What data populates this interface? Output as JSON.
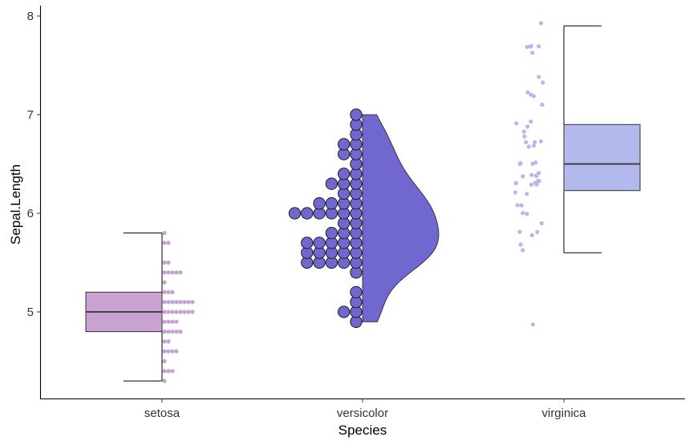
{
  "chart_data": {
    "type": "box-dot-violin",
    "title": "",
    "xlabel": "Species",
    "ylabel": "Sepal.Length",
    "categories": [
      "setosa",
      "versicolor",
      "virginica"
    ],
    "ylim": [
      4.2,
      8.1
    ],
    "yticks": [
      5,
      6,
      7,
      8
    ],
    "grid": false,
    "legend": "none",
    "series": [
      {
        "category": "setosa",
        "geoms": [
          "boxplot",
          "dotplot"
        ],
        "color": "#c8a2d1",
        "box": {
          "min": 4.3,
          "q1": 4.8,
          "median": 5.0,
          "q3": 5.2,
          "max": 5.8
        },
        "values": [
          4.3,
          4.4,
          4.4,
          4.4,
          4.5,
          4.6,
          4.6,
          4.6,
          4.6,
          4.7,
          4.7,
          4.8,
          4.8,
          4.8,
          4.8,
          4.8,
          4.9,
          4.9,
          4.9,
          4.9,
          5.0,
          5.0,
          5.0,
          5.0,
          5.0,
          5.0,
          5.0,
          5.0,
          5.1,
          5.1,
          5.1,
          5.1,
          5.1,
          5.1,
          5.1,
          5.1,
          5.2,
          5.2,
          5.2,
          5.3,
          5.4,
          5.4,
          5.4,
          5.4,
          5.4,
          5.5,
          5.5,
          5.7,
          5.7,
          5.8
        ]
      },
      {
        "category": "versicolor",
        "geoms": [
          "half-violin",
          "dotplot"
        ],
        "color": "#7067cf",
        "values": [
          4.9,
          5.0,
          5.0,
          5.1,
          5.2,
          5.4,
          5.5,
          5.5,
          5.5,
          5.5,
          5.5,
          5.6,
          5.6,
          5.6,
          5.6,
          5.6,
          5.7,
          5.7,
          5.7,
          5.7,
          5.7,
          5.8,
          5.8,
          5.8,
          5.9,
          5.9,
          6.0,
          6.0,
          6.0,
          6.0,
          6.0,
          6.0,
          6.1,
          6.1,
          6.1,
          6.1,
          6.2,
          6.2,
          6.3,
          6.3,
          6.3,
          6.4,
          6.4,
          6.5,
          6.6,
          6.6,
          6.7,
          6.7,
          6.8,
          6.9,
          7.0
        ]
      },
      {
        "category": "virginica",
        "geoms": [
          "jitter",
          "boxplot"
        ],
        "color": "#b3b9ec",
        "box": {
          "min": 5.6,
          "q1": 6.23,
          "median": 6.5,
          "q3": 6.9,
          "max": 7.9
        },
        "values": [
          4.9,
          5.6,
          5.7,
          5.8,
          5.8,
          5.8,
          5.9,
          6.0,
          6.0,
          6.1,
          6.1,
          6.2,
          6.2,
          6.3,
          6.3,
          6.3,
          6.3,
          6.3,
          6.3,
          6.4,
          6.4,
          6.4,
          6.4,
          6.4,
          6.5,
          6.5,
          6.5,
          6.5,
          6.7,
          6.7,
          6.7,
          6.7,
          6.7,
          6.8,
          6.8,
          6.9,
          6.9,
          6.9,
          7.1,
          7.2,
          7.2,
          7.2,
          7.3,
          7.4,
          7.6,
          7.7,
          7.7,
          7.7,
          7.7,
          7.9
        ]
      }
    ]
  }
}
